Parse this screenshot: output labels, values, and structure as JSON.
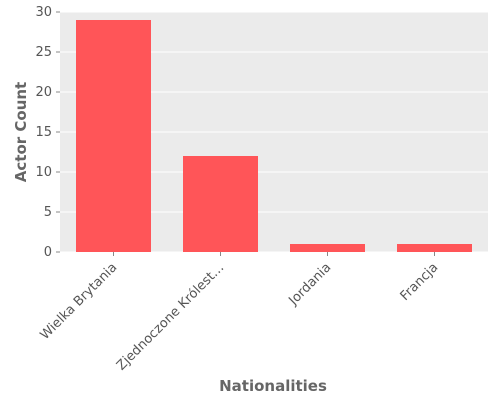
{
  "chart_data": {
    "type": "bar",
    "categories": [
      "Wielka Brytania",
      "Zjednoczone Królest…",
      "Jordania",
      "Francja"
    ],
    "values": [
      29,
      12,
      1,
      1
    ],
    "xlabel": "Nationalities",
    "ylabel": "Actor Count",
    "ylim": [
      0,
      30
    ],
    "yticks": [
      0,
      5,
      10,
      15,
      20,
      25,
      30
    ],
    "grid": true,
    "colors": {
      "bar": "#ff5558",
      "background": "#ebebeb",
      "grid": "#ffffff"
    }
  }
}
